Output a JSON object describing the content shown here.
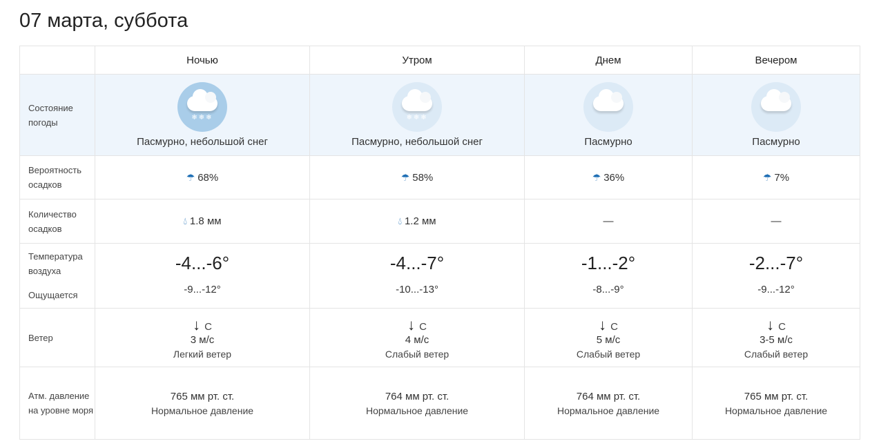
{
  "title": "07 марта, суббота",
  "labels": {
    "condition": "Состояние погоды",
    "precip_prob": "Вероятность осадков",
    "precip_amount": "Количество осадков",
    "temp": "Температура воздуха",
    "feels": "Ощущается",
    "wind": "Ветер",
    "pressure": "Атм. давление на уровне моря"
  },
  "columns": [
    {
      "name": "Ночью",
      "condition": "Пасмурно, небольшой снег",
      "icon": "cloud-snow-icon",
      "icon_bg": "#a9cde9",
      "prob": "68%",
      "amount": "1.8 мм",
      "temp": "-4...-6°",
      "feels": "-9...-12°",
      "wind_dir": "С",
      "wind_speed": "3 м/с",
      "wind_desc": "Легкий ветер",
      "pressure": "765 мм рт. ст.",
      "pressure_desc": "Нормальное давление"
    },
    {
      "name": "Утром",
      "condition": "Пасмурно, небольшой снег",
      "icon": "cloud-snow-icon",
      "icon_bg": "#dceaf6",
      "prob": "58%",
      "amount": "1.2 мм",
      "temp": "-4...-7°",
      "feels": "-10...-13°",
      "wind_dir": "С",
      "wind_speed": "4 м/с",
      "wind_desc": "Слабый ветер",
      "pressure": "764 мм рт. ст.",
      "pressure_desc": "Нормальное давление"
    },
    {
      "name": "Днем",
      "condition": "Пасмурно",
      "icon": "cloud-icon",
      "icon_bg": "#dceaf6",
      "prob": "36%",
      "amount": "—",
      "temp": "-1...-2°",
      "feels": "-8...-9°",
      "wind_dir": "С",
      "wind_speed": "5 м/с",
      "wind_desc": "Слабый ветер",
      "pressure": "764 мм рт. ст.",
      "pressure_desc": "Нормальное давление"
    },
    {
      "name": "Вечером",
      "condition": "Пасмурно",
      "icon": "cloud-icon",
      "icon_bg": "#dceaf6",
      "prob": "7%",
      "amount": "—",
      "temp": "-2...-7°",
      "feels": "-9...-12°",
      "wind_dir": "С",
      "wind_speed": "3-5 м/с",
      "wind_desc": "Слабый ветер",
      "pressure": "765 мм рт. ст.",
      "pressure_desc": "Нормальное давление"
    }
  ],
  "accent": "#1f6fb5"
}
